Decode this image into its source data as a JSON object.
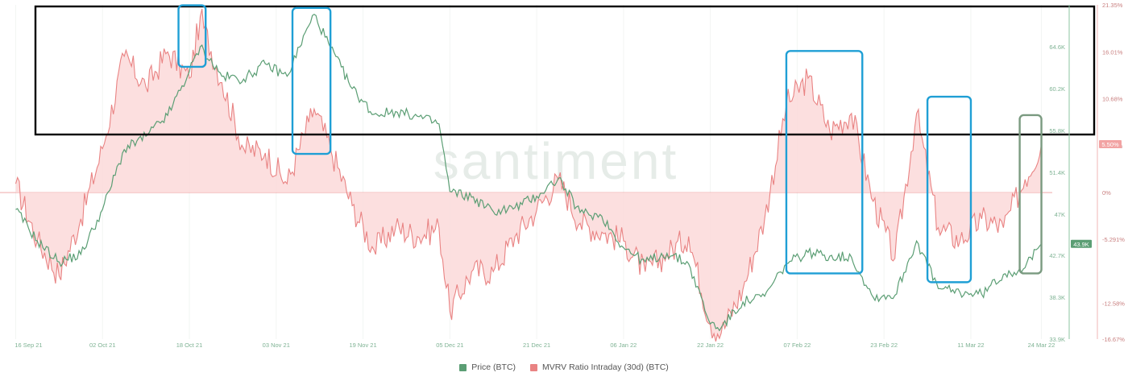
{
  "chart_data": {
    "type": "line",
    "watermark": "santiment",
    "colors": {
      "price": "#5b9e74",
      "mvrv_line": "#e98383",
      "mvrv_fill": "#fcd9d9",
      "highlight_blue": "#1f9fd5",
      "highlight_green": "#7a9a80",
      "highlight_black": "#000000",
      "price_badge": "#5b9e74",
      "mvrv_badge": "#f2a3a3"
    },
    "x_tick_labels": [
      "16 Sep 21",
      "02 Oct 21",
      "18 Oct 21",
      "03 Nov 21",
      "19 Nov 21",
      "05 Dec 21",
      "21 Dec 21",
      "06 Jan 22",
      "22 Jan 22",
      "07 Feb 22",
      "23 Feb 22",
      "11 Mar 22",
      "24 Mar 22"
    ],
    "y_left_axis": {
      "series": "Price (BTC)",
      "ylim": [
        33900,
        69000
      ],
      "tick_labels": [
        "33.9K",
        "38.3K",
        "42.7K",
        "47K",
        "51.4K",
        "55.8K",
        "60.2K",
        "64.6K"
      ],
      "tick_values": [
        33900,
        38300,
        42700,
        47000,
        51400,
        55800,
        60200,
        64600
      ]
    },
    "y_right_axis": {
      "series": "MVRV Ratio Intraday (30d) (BTC)",
      "ylim": [
        -16.67,
        21.35
      ],
      "tick_labels": [
        "21.35%",
        "16.01%",
        "10.68%",
        "5.338%",
        "0%",
        "-5.291%",
        "-12.58%",
        "-16.67%"
      ],
      "tick_values": [
        21.35,
        16.01,
        10.68,
        5.338,
        0,
        -5.291,
        -12.58,
        -16.67
      ]
    },
    "current_values": {
      "price_label": "43.9K",
      "mvrv_label": "5.50%"
    },
    "series": [
      {
        "name": "Price (BTC)",
        "color": "#5b9e74",
        "x": [
          "16 Sep 21",
          "20 Sep 21",
          "24 Sep 21",
          "28 Sep 21",
          "02 Oct 21",
          "06 Oct 21",
          "10 Oct 21",
          "14 Oct 21",
          "18 Oct 21",
          "20 Oct 21",
          "24 Oct 21",
          "28 Oct 21",
          "01 Nov 21",
          "05 Nov 21",
          "09 Nov 21",
          "10 Nov 21",
          "13 Nov 21",
          "17 Nov 21",
          "21 Nov 21",
          "25 Nov 21",
          "29 Nov 21",
          "03 Dec 21",
          "05 Dec 21",
          "09 Dec 21",
          "13 Dec 21",
          "17 Dec 21",
          "21 Dec 21",
          "25 Dec 21",
          "29 Dec 21",
          "02 Jan 22",
          "06 Jan 22",
          "10 Jan 22",
          "14 Jan 22",
          "18 Jan 22",
          "22 Jan 22",
          "24 Jan 22",
          "28 Jan 22",
          "01 Feb 22",
          "05 Feb 22",
          "09 Feb 22",
          "13 Feb 22",
          "17 Feb 22",
          "21 Feb 22",
          "25 Feb 22",
          "01 Mar 22",
          "05 Mar 22",
          "09 Mar 22",
          "13 Mar 22",
          "17 Mar 22",
          "21 Mar 22",
          "24 Mar 22"
        ],
        "values": [
          47500,
          44200,
          42000,
          42800,
          47500,
          53800,
          55200,
          57400,
          62000,
          64600,
          61500,
          61200,
          62800,
          61500,
          66800,
          68000,
          64500,
          60200,
          57500,
          57800,
          57300,
          56500,
          49400,
          48800,
          47300,
          47700,
          48900,
          50800,
          47200,
          46800,
          43500,
          42000,
          42900,
          41800,
          35500,
          35100,
          37800,
          38400,
          41800,
          43000,
          42600,
          42500,
          38300,
          38500,
          44200,
          39200,
          38800,
          38600,
          40700,
          41400,
          43900
        ]
      },
      {
        "name": "MVRV Ratio Intraday (30d) (BTC)",
        "color": "#e98383",
        "x": [
          "16 Sep 21",
          "20 Sep 21",
          "24 Sep 21",
          "28 Sep 21",
          "02 Oct 21",
          "06 Oct 21",
          "10 Oct 21",
          "14 Oct 21",
          "18 Oct 21",
          "20 Oct 21",
          "24 Oct 21",
          "28 Oct 21",
          "01 Nov 21",
          "05 Nov 21",
          "09 Nov 21",
          "10 Nov 21",
          "13 Nov 21",
          "17 Nov 21",
          "21 Nov 21",
          "25 Nov 21",
          "29 Nov 21",
          "03 Dec 21",
          "05 Dec 21",
          "09 Dec 21",
          "13 Dec 21",
          "17 Dec 21",
          "21 Dec 21",
          "25 Dec 21",
          "29 Dec 21",
          "02 Jan 22",
          "06 Jan 22",
          "10 Jan 22",
          "14 Jan 22",
          "18 Jan 22",
          "22 Jan 22",
          "24 Jan 22",
          "28 Jan 22",
          "01 Feb 22",
          "05 Feb 22",
          "09 Feb 22",
          "13 Feb 22",
          "17 Feb 22",
          "21 Feb 22",
          "25 Feb 22",
          "01 Mar 22",
          "05 Mar 22",
          "09 Mar 22",
          "13 Mar 22",
          "17 Mar 22",
          "21 Mar 22",
          "24 Mar 22"
        ],
        "values": [
          1.0,
          -5.5,
          -9.5,
          -3.0,
          5.0,
          15.5,
          12.0,
          16.0,
          13.0,
          20.0,
          12.5,
          5.0,
          4.5,
          1.0,
          8.0,
          9.5,
          5.0,
          -1.5,
          -6.5,
          -4.0,
          -5.0,
          -4.0,
          -13.5,
          -9.0,
          -9.0,
          -5.0,
          -2.0,
          1.5,
          -3.5,
          -4.5,
          -5.5,
          -9.0,
          -7.0,
          -5.0,
          -15.0,
          -16.0,
          -11.0,
          -3.0,
          10.0,
          13.0,
          7.0,
          9.0,
          -1.0,
          -7.5,
          9.0,
          -4.0,
          -5.5,
          -3.0,
          -4.0,
          1.5,
          5.5
        ]
      }
    ],
    "highlight_boxes": [
      {
        "kind": "black",
        "x_start": "14 Sep 21",
        "x_end": "24 Mar 22",
        "mvrv_top": 21.0,
        "mvrv_bottom": 6.0
      },
      {
        "kind": "blue",
        "x_start": "16 Oct 21",
        "x_end": "21 Oct 21",
        "mvrv_top": 21.3,
        "mvrv_bottom": 14.3
      },
      {
        "kind": "blue",
        "x_start": "06 Nov 21",
        "x_end": "13 Nov 21",
        "mvrv_top": 21.0,
        "mvrv_bottom": 4.4
      },
      {
        "kind": "blue",
        "x_start": "05 Feb 22",
        "x_end": "19 Feb 22",
        "mvrv_top": 16.1,
        "mvrv_bottom": -9.2
      },
      {
        "kind": "blue",
        "x_start": "03 Mar 22",
        "x_end": "11 Mar 22",
        "mvrv_top": 10.9,
        "mvrv_bottom": -10.2
      },
      {
        "kind": "green",
        "x_start": "20 Mar 22",
        "x_end": "24 Mar 22",
        "mvrv_top": 8.8,
        "mvrv_bottom": -9.2
      }
    ]
  }
}
